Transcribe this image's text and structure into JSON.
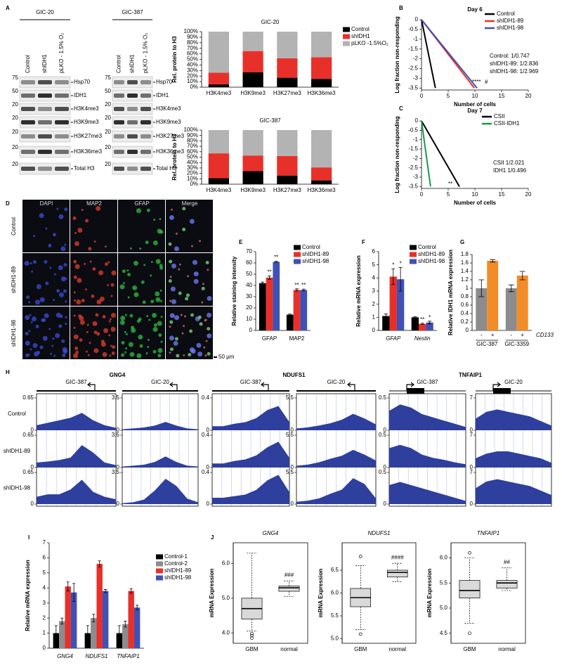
{
  "panel_letters": [
    "A",
    "B",
    "C",
    "D",
    "E",
    "F",
    "G",
    "H",
    "I",
    "J"
  ],
  "blots": [
    {
      "title": "GIC-20",
      "lanes": [
        "Control",
        "shIDH1",
        "pLKO - 1.5% O₂"
      ],
      "bands": [
        "Hsp70",
        "IDH1",
        "H3K4me3",
        "H3K9me3",
        "H3K27me3",
        "H3K36me3",
        "Total H3"
      ],
      "markers": [
        "75",
        "50",
        "20",
        "20",
        "20",
        "20",
        "20"
      ]
    },
    {
      "title": "GIC-387",
      "lanes": [
        "Control",
        "shIDH1",
        "pLKO - 1.5% O₂"
      ],
      "bands": [
        "Hsp70",
        "IDH1",
        "H3K4me3",
        "H3K9me3",
        "H3K27me3",
        "H3K36me3",
        "Total H3"
      ],
      "markers": [
        "75",
        "50",
        "20",
        "20",
        "20",
        "20",
        "20"
      ]
    }
  ],
  "micrographs": {
    "channels": [
      "DAPI",
      "MAP2",
      "GFAP",
      "Merge"
    ],
    "rows": [
      "Control",
      "shIDH1-89",
      "shIDH1-98"
    ],
    "scale_bar": "50 μm"
  },
  "chart_data": [
    {
      "type": "stacked_bar",
      "title": "GIC-20",
      "y_label": "Rel. protein to H3",
      "categories": [
        "H3K4me3",
        "H3K9me3",
        "H3K27me3",
        "H3K36me3"
      ],
      "series": [
        {
          "name": "Control",
          "color": "#000000",
          "values": [
            5,
            27,
            17,
            15
          ]
        },
        {
          "name": "shIDH1",
          "color": "#e8302a",
          "values": [
            21,
            38,
            35,
            39
          ]
        },
        {
          "name": "pLKO -1.5%O₂",
          "color": "#b3b3b3",
          "values": [
            74,
            35,
            48,
            46
          ]
        }
      ],
      "ylim": [
        0,
        100
      ],
      "yticks": [
        {
          "value": 0,
          "label": "0%"
        },
        {
          "value": 10,
          "label": "10%"
        },
        {
          "value": 20,
          "label": "20%"
        },
        {
          "value": 30,
          "label": "30%"
        },
        {
          "value": 40,
          "label": "40%"
        },
        {
          "value": 50,
          "label": "50%"
        },
        {
          "value": 60,
          "label": "60%"
        },
        {
          "value": 70,
          "label": "70%"
        },
        {
          "value": 80,
          "label": "80%"
        },
        {
          "value": 90,
          "label": "90%"
        },
        {
          "value": 100,
          "label": "100%"
        }
      ],
      "legend": "upper right"
    },
    {
      "type": "stacked_bar",
      "title": "GIC-387",
      "y_label": "Rel. protein to H3",
      "categories": [
        "H3K4me3",
        "H3K9me3",
        "H3K27me3",
        "H3K36me3"
      ],
      "series": [
        {
          "color": "#000000",
          "values": [
            11,
            24,
            16,
            7
          ]
        },
        {
          "color": "#e8302a",
          "values": [
            46,
            29,
            36,
            24
          ]
        },
        {
          "color": "#b3b3b3",
          "values": [
            43,
            47,
            48,
            69
          ]
        }
      ],
      "ylim": [
        0,
        100
      ],
      "yticks": [
        {
          "value": 0,
          "label": "0%"
        },
        {
          "value": 10,
          "label": "10%"
        },
        {
          "value": 20,
          "label": "20%"
        },
        {
          "value": 30,
          "label": "30%"
        },
        {
          "value": 40,
          "label": "40%"
        },
        {
          "value": 50,
          "label": "50%"
        },
        {
          "value": 60,
          "label": "60%"
        },
        {
          "value": 70,
          "label": "70%"
        },
        {
          "value": 80,
          "label": "80%"
        },
        {
          "value": 90,
          "label": "90%"
        },
        {
          "value": 100,
          "label": "100%"
        }
      ]
    },
    {
      "type": "line",
      "title": "Day 6",
      "x_label": "Number of cells",
      "y_label": "Log fraction non-responding",
      "xlim": [
        0,
        20
      ],
      "xticks": [
        0,
        5,
        10,
        15,
        20
      ],
      "ylim": [
        -3.6,
        0
      ],
      "yticks": [
        0,
        -0.5,
        -1,
        -1.5,
        -2,
        -2.5,
        -3,
        -3.5
      ],
      "series": [
        {
          "name": "Control",
          "color": "#000000",
          "x": [
            0,
            2.6
          ],
          "values": [
            0,
            -3.5
          ]
        },
        {
          "name": "shIDH1-89",
          "color": "#e8302a",
          "x": [
            0,
            9.9
          ],
          "values": [
            0,
            -3.5
          ]
        },
        {
          "name": "shIDH1-98",
          "color": "#3f51b5",
          "x": [
            0,
            10.4
          ],
          "values": [
            0,
            -3.5
          ]
        }
      ],
      "annotations": [
        "Control: 1/0.747",
        "shIDH1-89: 1/2.836",
        "shIDH1-98: 1/2.969",
        "****",
        "#"
      ],
      "legend": "upper right"
    },
    {
      "type": "line",
      "title": "Day 7",
      "x_label": "Number of cells",
      "y_label": "Log fraction non-responding",
      "xlim": [
        0,
        20
      ],
      "xticks": [
        0,
        5,
        10,
        15,
        20
      ],
      "ylim": [
        -3.6,
        0
      ],
      "yticks": [
        0,
        -0.5,
        -1,
        -1.5,
        -2,
        -2.5,
        -3,
        -3.5
      ],
      "series": [
        {
          "name": "CSII",
          "color": "#000000",
          "x": [
            0,
            7.1
          ],
          "values": [
            0,
            -3.5
          ]
        },
        {
          "name": "CSII-IDH1",
          "color": "#1a9a4a",
          "x": [
            0,
            1.7
          ],
          "values": [
            0,
            -3.5
          ]
        }
      ],
      "annotations": [
        "CSII 1/2.021",
        "IDH1 1/0.496",
        "**"
      ],
      "legend": "upper right"
    },
    {
      "type": "grouped_bar",
      "y_label": "Relative staining intensity",
      "categories": [
        "GFAP",
        "MAP2"
      ],
      "series": [
        {
          "name": "Control",
          "color": "#000000",
          "values": [
            42,
            14
          ],
          "errors": [
            1,
            0.5
          ]
        },
        {
          "name": "shIDH1-89",
          "color": "#e8302a",
          "values": [
            47,
            36
          ],
          "errors": [
            1.5,
            1
          ]
        },
        {
          "name": "shIDH1-98",
          "color": "#3f51b5",
          "values": [
            61,
            36
          ],
          "errors": [
            0.5,
            0.8
          ]
        }
      ],
      "ylim": [
        0,
        70
      ],
      "yticks": [
        0,
        10,
        20,
        30,
        40,
        50,
        60,
        70
      ],
      "annotations": [
        "**",
        "**",
        "**",
        "**"
      ],
      "legend": "upper right"
    },
    {
      "type": "grouped_bar",
      "y_label": "Relative mRNA expression",
      "categories": [
        "GFAP",
        "Nestin"
      ],
      "italic_categories": true,
      "series": [
        {
          "name": "Control",
          "color": "#000000",
          "values": [
            1.1,
            1.0
          ],
          "errors": [
            0.15,
            0.05
          ]
        },
        {
          "name": "shIDH1-89",
          "color": "#e8302a",
          "values": [
            4.1,
            0.5
          ],
          "errors": [
            0.6,
            0.05
          ]
        },
        {
          "name": "shIDH1-98",
          "color": "#3f51b5",
          "values": [
            3.9,
            0.6
          ],
          "errors": [
            0.9,
            0.1
          ]
        }
      ],
      "ylim": [
        0,
        6
      ],
      "yticks": [
        0,
        1,
        2,
        3,
        4,
        5,
        6
      ],
      "annotations": [
        "*",
        "*",
        "**",
        "*"
      ],
      "legend": "upper right"
    },
    {
      "type": "grouped_bar",
      "y_label": "Relative IDH1 mRNA expression",
      "categories": [
        "GIC-387",
        "GIC-3359"
      ],
      "series": [
        {
          "name": "-",
          "color": "#8c8c8c",
          "values": [
            1,
            1
          ],
          "errors": [
            0.2,
            0.08
          ]
        },
        {
          "name": "+",
          "color": "#f28c28",
          "values": [
            1.65,
            1.3
          ],
          "errors": [
            0.03,
            0.1
          ]
        }
      ],
      "legend_title": "CD133",
      "ylim": [
        0,
        1.8
      ],
      "yticks": [
        0,
        0.2,
        0.4,
        0.6,
        0.8,
        1,
        1.2,
        1.4,
        1.6,
        1.8
      ]
    },
    {
      "type": "grouped_bar",
      "y_label": "Relative mRNA expression",
      "categories": [
        "GNG4",
        "NDUFS1",
        "TNFAIP1"
      ],
      "italic_categories": true,
      "series": [
        {
          "name": "Control-1",
          "color": "#000000",
          "values": [
            1,
            1,
            1
          ],
          "errors": [
            0.5,
            0.5,
            0.5
          ]
        },
        {
          "name": "Control-2",
          "color": "#8c8c8c",
          "values": [
            1.8,
            2.0,
            1.6
          ],
          "errors": [
            0.2,
            0.25,
            0.2
          ]
        },
        {
          "name": "shIDH1-89",
          "color": "#e8302a",
          "values": [
            4.1,
            5.6,
            3.8
          ],
          "errors": [
            0.3,
            0.2,
            0.15
          ]
        },
        {
          "name": "shIDH1-98",
          "color": "#3f51b5",
          "values": [
            3.7,
            3.8,
            2.7
          ],
          "errors": [
            0.6,
            0.1,
            0.15
          ]
        }
      ],
      "ylim": [
        0,
        7
      ],
      "yticks": [
        0,
        1,
        2,
        3,
        4,
        5,
        6,
        7
      ],
      "legend": "upper right"
    },
    {
      "type": "box",
      "title": "GNG4",
      "y_label": "mRNA Expression",
      "categories": [
        "GBM",
        "normal"
      ],
      "color": "#d9d9d9",
      "boxes": [
        {
          "whisker_low": 4.05,
          "q1": 4.4,
          "median": 4.7,
          "q3": 5.0,
          "whisker_high": 6.3,
          "outliers": [
            3.85,
            3.92,
            3.98
          ]
        },
        {
          "whisker_low": 5.05,
          "q1": 5.2,
          "median": 5.3,
          "q3": 5.35,
          "whisker_high": 5.5,
          "outliers": []
        }
      ],
      "ylim": [
        3.7,
        6.6
      ],
      "yticks": [
        {
          "value": 4,
          "label": "4.0"
        },
        {
          "value": 5,
          "label": "5.0"
        },
        {
          "value": 6,
          "label": "6.0"
        }
      ],
      "annotation": "###"
    },
    {
      "type": "box",
      "title": "NDUFS1",
      "y_label": "mRNA Expression",
      "categories": [
        "GBM",
        "normal"
      ],
      "color": "#d9d9d9",
      "boxes": [
        {
          "whisker_low": 5.2,
          "q1": 5.7,
          "median": 5.9,
          "q3": 6.1,
          "whisker_high": 6.6,
          "outliers": [
            5.1,
            6.8
          ]
        },
        {
          "whisker_low": 6.25,
          "q1": 6.35,
          "median": 6.45,
          "q3": 6.5,
          "whisker_high": 6.65,
          "outliers": []
        }
      ],
      "ylim": [
        4.9,
        7.1
      ],
      "yticks": [
        {
          "value": 5,
          "label": "5.0"
        },
        5.5,
        {
          "value": 6,
          "label": "6.0"
        },
        6.5
      ],
      "annotation": "####"
    },
    {
      "type": "box",
      "title": "TNFAIP1",
      "y_label": "mRNA Expression",
      "categories": [
        "GBM",
        "normal"
      ],
      "color": "#d9d9d9",
      "boxes": [
        {
          "whisker_low": 4.7,
          "q1": 5.2,
          "median": 5.35,
          "q3": 5.55,
          "whisker_high": 6.0,
          "outliers": [
            4.5,
            6.1
          ]
        },
        {
          "whisker_low": 5.35,
          "q1": 5.4,
          "median": 5.5,
          "q3": 5.55,
          "whisker_high": 5.8,
          "outliers": []
        }
      ],
      "ylim": [
        4.3,
        6.3
      ],
      "yticks": [
        4.5,
        {
          "value": 5,
          "label": "5.0"
        },
        5.5,
        {
          "value": 6,
          "label": "6.0"
        }
      ],
      "annotation": "##"
    }
  ],
  "tracks": {
    "color": "#2e3f9e",
    "row_labels": [
      "Control",
      "shIDH1-89",
      "shIDH1-98"
    ],
    "genes": [
      {
        "name": "GNG4",
        "samples": [
          {
            "name": "GIC-387",
            "ylim": [
              0,
              0.65
            ],
            "yticks": [
              0,
              0.65
            ],
            "rows": [
              [
                0.1,
                0.15,
                0.2,
                0.25,
                0.35,
                0.2,
                0.1,
                0.05
              ],
              [
                0.1,
                0.12,
                0.15,
                0.2,
                0.45,
                0.3,
                0.1,
                0.05
              ],
              [
                0.15,
                0.2,
                0.2,
                0.3,
                0.5,
                0.25,
                0.15,
                0.1
              ]
            ]
          },
          {
            "name": "GIC-20",
            "ylim": [
              0,
              3.5
            ],
            "yticks": [
              0,
              3.5
            ],
            "rows": [
              [
                0.1,
                0.2,
                0.3,
                0.5,
                0.9,
                0.5,
                0.2,
                0.1
              ],
              [
                0.1,
                0.2,
                0.3,
                0.6,
                1.2,
                0.6,
                0.2,
                0.1
              ],
              [
                0.1,
                0.2,
                0.5,
                1.5,
                2.8,
                2.0,
                0.6,
                0.2
              ]
            ]
          }
        ]
      },
      {
        "name": "NDUFS1",
        "samples": [
          {
            "name": "GIC-387",
            "ylim": [
              0,
              0.4
            ],
            "yticks": [
              0,
              0.4
            ],
            "rows": [
              [
                0.05,
                0.05,
                0.08,
                0.1,
                0.15,
                0.25,
                0.3,
                0.1
              ],
              [
                0.05,
                0.05,
                0.08,
                0.1,
                0.15,
                0.25,
                0.32,
                0.12
              ],
              [
                0.08,
                0.08,
                0.1,
                0.12,
                0.18,
                0.3,
                0.37,
                0.15
              ]
            ]
          },
          {
            "name": "GIC-20",
            "ylim": [
              0,
              5.5
            ],
            "yticks": [
              0,
              5.5
            ],
            "rows": [
              [
                0.3,
                0.5,
                0.8,
                1.2,
                1.8,
                2.8,
                2.0,
                1.0
              ],
              [
                0.3,
                0.5,
                0.9,
                1.5,
                2.0,
                3.0,
                2.2,
                1.2
              ],
              [
                0.4,
                0.6,
                1.0,
                1.8,
                2.5,
                4.5,
                3.5,
                1.0
              ]
            ]
          }
        ]
      },
      {
        "name": "TNFAIP1",
        "samples": [
          {
            "name": "GIC-387",
            "ylim": [
              0,
              0.5
            ],
            "yticks": [
              0,
              0.5
            ],
            "rows": [
              [
                0.3,
                0.4,
                0.35,
                0.25,
                0.2,
                0.15,
                0.1,
                0.05
              ],
              [
                0.3,
                0.35,
                0.3,
                0.2,
                0.15,
                0.12,
                0.08,
                0.05
              ],
              [
                0.3,
                0.35,
                0.3,
                0.25,
                0.2,
                0.15,
                0.1,
                0.05
              ]
            ]
          },
          {
            "name": "GIC-20",
            "ylim": [
              0,
              7
            ],
            "yticks": [
              0,
              7
            ],
            "rows": [
              [
                2.5,
                4.0,
                4.5,
                4.0,
                3.5,
                3.0,
                2.0,
                1.0
              ],
              [
                2.0,
                3.0,
                3.5,
                3.5,
                3.0,
                2.5,
                2.0,
                1.0
              ],
              [
                3.5,
                5.0,
                5.5,
                5.0,
                4.5,
                4.0,
                3.0,
                2.0
              ]
            ]
          }
        ]
      }
    ]
  }
}
